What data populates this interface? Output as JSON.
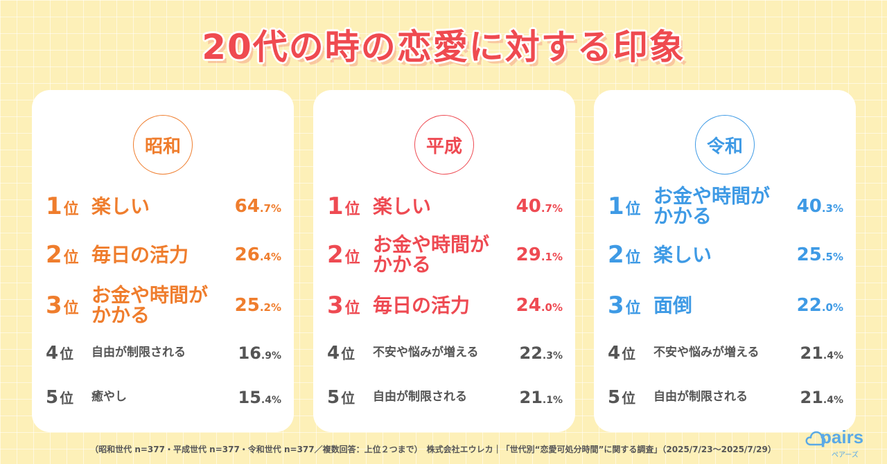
{
  "title": "20代の時の恋愛に対する印象",
  "colors": {
    "showa": "#ef7d2d",
    "heisei": "#ee4a52",
    "reiwa": "#3e9ae5",
    "minor": "#555555",
    "background": "#fdf0b8"
  },
  "cards": [
    {
      "era": "昭和",
      "ranks": [
        {
          "num": "1",
          "suffix": "位",
          "label": "楽しい",
          "pct_int": "64",
          "pct_dec": ".7%"
        },
        {
          "num": "2",
          "suffix": "位",
          "label": "毎日の活力",
          "pct_int": "26",
          "pct_dec": ".4%"
        },
        {
          "num": "3",
          "suffix": "位",
          "label": "お金や時間がかかる",
          "pct_int": "25",
          "pct_dec": ".2%"
        },
        {
          "num": "4",
          "suffix": "位",
          "label": "自由が制限される",
          "pct_int": "16",
          "pct_dec": ".9%"
        },
        {
          "num": "5",
          "suffix": "位",
          "label": "癒やし",
          "pct_int": "15",
          "pct_dec": ".4%"
        }
      ]
    },
    {
      "era": "平成",
      "ranks": [
        {
          "num": "1",
          "suffix": "位",
          "label": "楽しい",
          "pct_int": "40",
          "pct_dec": ".7%"
        },
        {
          "num": "2",
          "suffix": "位",
          "label": "お金や時間がかかる",
          "pct_int": "29",
          "pct_dec": ".1%"
        },
        {
          "num": "3",
          "suffix": "位",
          "label": "毎日の活力",
          "pct_int": "24",
          "pct_dec": ".0%"
        },
        {
          "num": "4",
          "suffix": "位",
          "label": "不安や悩みが増える",
          "pct_int": "22",
          "pct_dec": ".3%"
        },
        {
          "num": "5",
          "suffix": "位",
          "label": "自由が制限される",
          "pct_int": "21",
          "pct_dec": ".1%"
        }
      ]
    },
    {
      "era": "令和",
      "ranks": [
        {
          "num": "1",
          "suffix": "位",
          "label": "お金や時間がかかる",
          "pct_int": "40",
          "pct_dec": ".3%"
        },
        {
          "num": "2",
          "suffix": "位",
          "label": "楽しい",
          "pct_int": "25",
          "pct_dec": ".5%"
        },
        {
          "num": "3",
          "suffix": "位",
          "label": "面倒",
          "pct_int": "22",
          "pct_dec": ".0%"
        },
        {
          "num": "4",
          "suffix": "位",
          "label": "不安や悩みが増える",
          "pct_int": "21",
          "pct_dec": ".4%"
        },
        {
          "num": "5",
          "suffix": "位",
          "label": "自由が制限される",
          "pct_int": "21",
          "pct_dec": ".4%"
        }
      ]
    }
  ],
  "footnote": "（昭和世代 n=377・平成世代 n=377・令和世代 n=377／複数回答：上位２つまで）　株式会社エウレカ｜「世代別“恋愛可処分時間”に関する調査」（2025/7/23～2025/7/29）",
  "logo": {
    "word": "pairs",
    "sub": "ペアーズ",
    "icon": "cloud-icon"
  }
}
